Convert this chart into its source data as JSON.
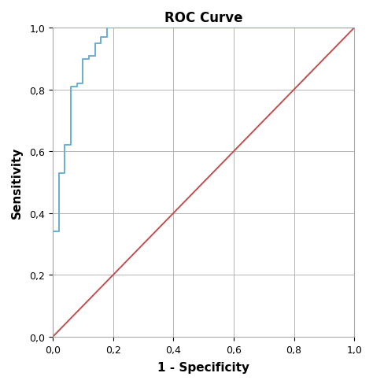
{
  "title": "ROC Curve",
  "xlabel": "1 - Specificity",
  "ylabel": "Sensitivity",
  "xlim": [
    0.0,
    1.0
  ],
  "ylim": [
    0.0,
    1.0
  ],
  "xticks": [
    0.0,
    0.2,
    0.4,
    0.6,
    0.8,
    1.0
  ],
  "yticks": [
    0.0,
    0.2,
    0.4,
    0.6,
    0.8,
    1.0
  ],
  "background_color": "#ffffff",
  "fig_background_color": "#ffffff",
  "roc_color": "#6aadd5",
  "diagonal_color": "#c0504d",
  "roc_linewidth": 1.4,
  "diagonal_linewidth": 1.4,
  "grid_color": "#aaaaaa",
  "grid_linewidth": 0.6,
  "spine_color": "#aaaaaa",
  "title_fontsize": 12,
  "label_fontsize": 11,
  "tick_fontsize": 9,
  "roc_x": [
    0.0,
    0.0,
    0.02,
    0.02,
    0.04,
    0.04,
    0.06,
    0.06,
    0.08,
    0.08,
    0.1,
    0.1,
    0.12,
    0.12,
    0.14,
    0.14,
    0.16,
    0.16,
    0.18,
    0.18,
    0.2,
    0.2,
    0.22,
    0.22,
    1.0
  ],
  "roc_y": [
    0.0,
    0.34,
    0.34,
    0.53,
    0.53,
    0.62,
    0.62,
    0.81,
    0.81,
    0.82,
    0.82,
    0.9,
    0.9,
    0.91,
    0.91,
    0.95,
    0.95,
    0.97,
    0.97,
    1.0,
    1.0,
    1.0,
    1.0,
    1.0,
    1.0
  ]
}
